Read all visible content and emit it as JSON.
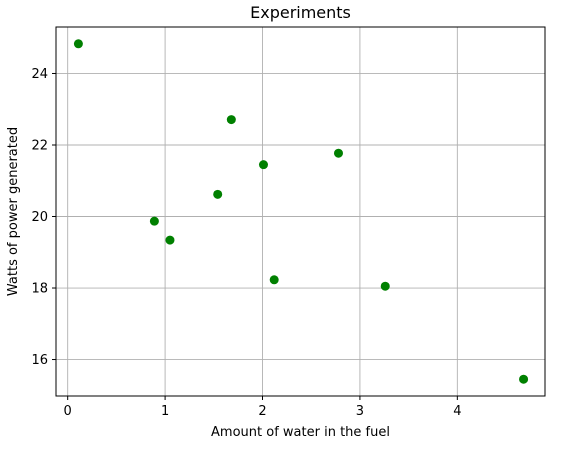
{
  "chart_data": {
    "type": "scatter",
    "title": "Experiments",
    "xlabel": "Amount of water in the fuel",
    "ylabel": "Watts of power generated",
    "xlim": [
      -0.12,
      4.9
    ],
    "ylim": [
      14.98,
      25.3
    ],
    "xticks": [
      0,
      1,
      2,
      3,
      4
    ],
    "yticks": [
      16,
      18,
      20,
      22,
      24
    ],
    "grid": true,
    "marker_color": "#008000",
    "points": [
      {
        "x": 0.11,
        "y": 24.83
      },
      {
        "x": 0.89,
        "y": 19.87
      },
      {
        "x": 1.05,
        "y": 19.34
      },
      {
        "x": 1.54,
        "y": 20.62
      },
      {
        "x": 1.68,
        "y": 22.71
      },
      {
        "x": 2.01,
        "y": 21.45
      },
      {
        "x": 2.12,
        "y": 18.23
      },
      {
        "x": 2.78,
        "y": 21.77
      },
      {
        "x": 3.26,
        "y": 18.05
      },
      {
        "x": 4.68,
        "y": 15.45
      }
    ]
  }
}
